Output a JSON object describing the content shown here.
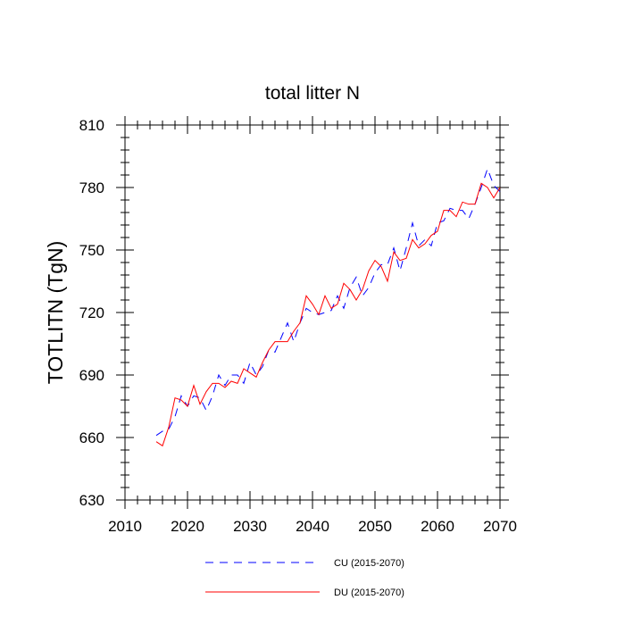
{
  "chart_data": {
    "type": "line",
    "title": "total litter N",
    "xlabel": "",
    "ylabel": "TOTLITN  (TgN)",
    "xlim": [
      2010,
      2070
    ],
    "ylim": [
      630,
      810
    ],
    "xticks": [
      2010,
      2020,
      2030,
      2040,
      2050,
      2060,
      2070
    ],
    "yticks": [
      630,
      660,
      690,
      720,
      750,
      780,
      810
    ],
    "x": [
      2015,
      2016,
      2017,
      2018,
      2019,
      2020,
      2021,
      2022,
      2023,
      2024,
      2025,
      2026,
      2027,
      2028,
      2029,
      2030,
      2031,
      2032,
      2033,
      2034,
      2035,
      2036,
      2037,
      2038,
      2039,
      2040,
      2041,
      2042,
      2043,
      2044,
      2045,
      2046,
      2047,
      2048,
      2049,
      2050,
      2051,
      2052,
      2053,
      2054,
      2055,
      2056,
      2057,
      2058,
      2059,
      2060,
      2061,
      2062,
      2063,
      2064,
      2065,
      2066,
      2067,
      2068,
      2069,
      2070
    ],
    "series": [
      {
        "name": "CU (2015-2070)",
        "color": "#0000ff",
        "style": "dashed",
        "values": [
          661,
          663,
          664,
          670,
          680,
          675,
          680,
          679,
          673,
          680,
          690,
          685,
          690,
          690,
          686,
          696,
          690,
          694,
          702,
          701,
          708,
          715,
          706,
          715,
          722,
          720,
          719,
          720,
          721,
          728,
          722,
          732,
          737,
          728,
          732,
          739,
          743,
          743,
          751,
          740,
          751,
          763,
          752,
          755,
          752,
          763,
          764,
          770,
          769,
          769,
          765,
          772,
          780,
          789,
          781,
          778
        ]
      },
      {
        "name": "DU (2015-2070)",
        "color": "#ff0000",
        "style": "solid",
        "values": [
          658,
          656,
          665,
          679,
          678,
          675,
          685,
          676,
          682,
          686,
          686,
          684,
          687,
          686,
          693,
          691,
          689,
          696,
          702,
          706,
          706,
          706,
          711,
          715,
          728,
          724,
          719,
          728,
          722,
          724,
          734,
          731,
          726,
          731,
          740,
          745,
          742,
          735,
          749,
          745,
          746,
          755,
          751,
          753,
          757,
          759,
          769,
          769,
          766,
          773,
          772,
          772,
          782,
          780,
          775,
          780
        ]
      }
    ]
  }
}
